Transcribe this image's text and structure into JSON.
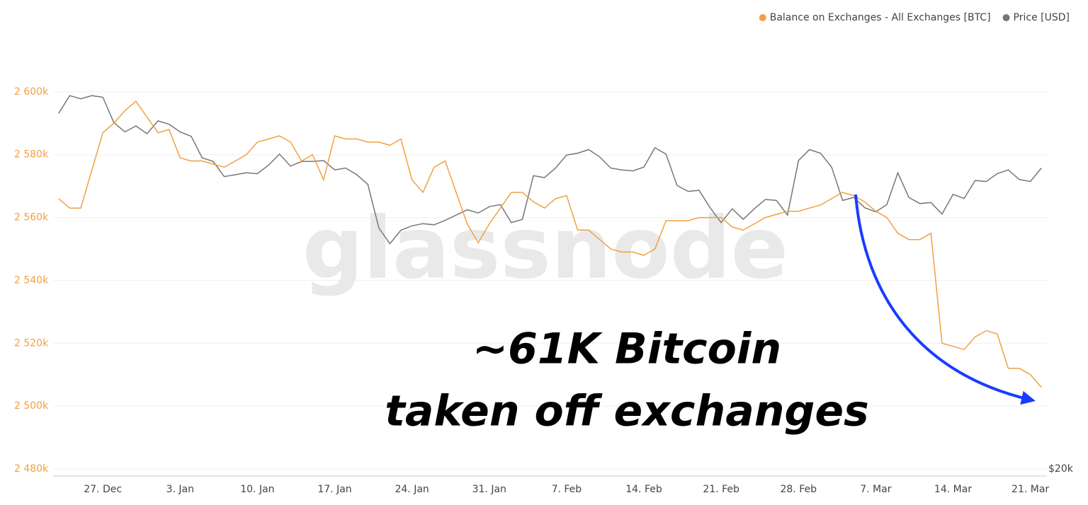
{
  "chart_data": {
    "type": "line",
    "watermark": "glassnode",
    "annotation": [
      "~61K Bitcoin",
      "taken off exchanges"
    ],
    "legend": "top-right",
    "grid": true,
    "y2log": true,
    "categories": [
      null,
      null,
      null,
      null,
      "27. Dec",
      null,
      null,
      null,
      null,
      null,
      null,
      "3. Jan",
      null,
      null,
      null,
      null,
      null,
      null,
      "10. Jan",
      null,
      null,
      null,
      null,
      null,
      null,
      "17. Jan",
      null,
      null,
      null,
      null,
      null,
      null,
      "24. Jan",
      null,
      null,
      null,
      null,
      null,
      null,
      "31. Jan",
      null,
      null,
      null,
      null,
      null,
      null,
      "7. Feb",
      null,
      null,
      null,
      null,
      null,
      null,
      "14. Feb",
      null,
      null,
      null,
      null,
      null,
      null,
      "21. Feb",
      null,
      null,
      null,
      null,
      null,
      null,
      "28. Feb",
      null,
      null,
      null,
      null,
      null,
      null,
      "7. Mar",
      null,
      null,
      null,
      null,
      null,
      null,
      "14. Mar",
      null,
      null,
      null,
      null,
      null,
      null,
      "21. Mar",
      null
    ],
    "series": [
      {
        "name": "Balance on Exchanges - All Exchanges [BTC]",
        "color": "#f2a040",
        "values": [
          2566000,
          2563000,
          2563000,
          2575000,
          2587000,
          2590000,
          2594000,
          2597000,
          2592000,
          2587000,
          2588000,
          2579000,
          2578000,
          2578000,
          2577000,
          2576000,
          2578000,
          2580000,
          2584000,
          2585000,
          2586000,
          2584000,
          2578000,
          2580000,
          2572000,
          2586000,
          2585000,
          2585000,
          2584000,
          2584000,
          2583000,
          2585000,
          2572000,
          2568000,
          2576000,
          2578000,
          2568000,
          2558000,
          2552000,
          2558000,
          2563000,
          2568000,
          2568000,
          2565000,
          2563000,
          2566000,
          2567000,
          2556000,
          2556000,
          2553000,
          2550000,
          2549000,
          2549000,
          2548000,
          2550000,
          2559000,
          2559000,
          2559000,
          2560000,
          2560000,
          2560000,
          2557000,
          2556000,
          2558000,
          2560000,
          2561000,
          2562000,
          2562000,
          2563000,
          2564000,
          2566000,
          2568000,
          2567000,
          2565000,
          2562000,
          2560000,
          2555000,
          2553000,
          2553000,
          2555000,
          2520000,
          2519000,
          2518000,
          2522000,
          2524000,
          2523000,
          2512000,
          2512000,
          2510000,
          2506000
        ]
      },
      {
        "name": "Price [USD]",
        "color": "#777777",
        "axis": "y2",
        "values": [
          48600,
          50800,
          50400,
          50800,
          50600,
          47500,
          46400,
          47100,
          46200,
          47700,
          47300,
          46400,
          45900,
          43500,
          43100,
          41500,
          41700,
          41900,
          41800,
          42700,
          43900,
          42600,
          43100,
          43100,
          43200,
          42200,
          42400,
          41700,
          40700,
          36500,
          35100,
          36300,
          36700,
          36900,
          36800,
          37200,
          37700,
          38200,
          37900,
          38500,
          38700,
          37000,
          37300,
          41600,
          41400,
          42400,
          43800,
          44000,
          44400,
          43600,
          42400,
          42200,
          42100,
          42500,
          44600,
          43900,
          40600,
          40000,
          40100,
          38400,
          37000,
          38300,
          37300,
          38300,
          39200,
          39100,
          37700,
          43200,
          44400,
          44000,
          42500,
          39100,
          39400,
          38400,
          38000,
          38700,
          41900,
          39400,
          38800,
          38900,
          37800,
          39700,
          39300,
          41100,
          41000,
          41800,
          42200,
          41200,
          41000,
          42400
        ]
      }
    ],
    "ylim": [
      2480000,
      2620000
    ],
    "yticks": [
      {
        "value": 2480000,
        "label": "2 480k"
      },
      {
        "value": 2500000,
        "label": "2 500k"
      },
      {
        "value": 2520000,
        "label": "2 520k"
      },
      {
        "value": 2540000,
        "label": "2 540k"
      },
      {
        "value": 2560000,
        "label": "2 560k"
      },
      {
        "value": 2580000,
        "label": "2 580k"
      },
      {
        "value": 2600000,
        "label": "2 600k"
      }
    ],
    "y2lim": [
      20000,
      60000
    ],
    "y2ticks": [
      {
        "value": 20000,
        "label": "$20k"
      }
    ]
  }
}
